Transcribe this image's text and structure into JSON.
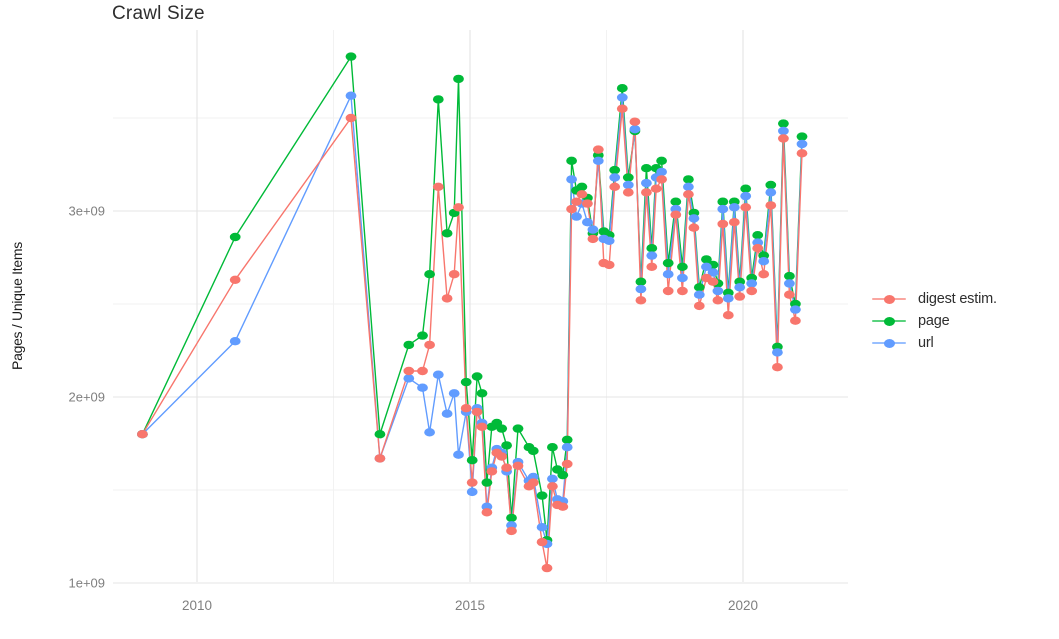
{
  "title": "Crawl Size",
  "axes": {
    "y": {
      "label": "Pages / Unique Items",
      "ticks": [
        {
          "label": "1e+09",
          "value": 1000000000.0
        },
        {
          "label": "2e+09",
          "value": 2000000000.0
        },
        {
          "label": "3e+09",
          "value": 3000000000.0
        }
      ]
    },
    "x": {
      "ticks": [
        {
          "label": "2010",
          "value": 2010
        },
        {
          "label": "2015",
          "value": 2015
        },
        {
          "label": "2020",
          "value": 2020
        }
      ]
    }
  },
  "legend": {
    "items": [
      {
        "label": "digest estim.",
        "color": "#F8766D",
        "series": "digest estim."
      },
      {
        "label": "page",
        "color": "#00BA38",
        "series": "page"
      },
      {
        "label": "url",
        "color": "#619CFF",
        "series": "url"
      }
    ]
  },
  "chart_data": {
    "type": "line",
    "title": "Crawl Size",
    "ylabel": "Pages / Unique Items",
    "xlabel": "",
    "grid": "on",
    "background": "white",
    "legend_position": "right",
    "xlim": [
      2008.45,
      2021.95
    ],
    "ylim": [
      1000000000.0,
      3980000000.0
    ],
    "x_major_gridlines": [
      2010,
      2015,
      2020
    ],
    "x_minor_gridlines": [
      2012.5,
      2017.5
    ],
    "y_major_gridlines": [
      1000000000.0,
      2000000000.0,
      3000000000.0
    ],
    "y_minor_gridlines": [
      1500000000.0,
      2500000000.0,
      3500000000.0
    ],
    "x": [
      2009.0,
      2010.7,
      2012.82,
      2013.35,
      2013.88,
      2014.13,
      2014.26,
      2014.42,
      2014.58,
      2014.71,
      2014.79,
      2014.93,
      2015.04,
      2015.13,
      2015.22,
      2015.31,
      2015.4,
      2015.49,
      2015.58,
      2015.67,
      2015.76,
      2015.88,
      2016.08,
      2016.16,
      2016.32,
      2016.41,
      2016.51,
      2016.6,
      2016.7,
      2016.78,
      2016.86,
      2016.95,
      2017.05,
      2017.15,
      2017.25,
      2017.35,
      2017.45,
      2017.55,
      2017.65,
      2017.79,
      2017.9,
      2018.02,
      2018.13,
      2018.23,
      2018.33,
      2018.41,
      2018.51,
      2018.63,
      2018.77,
      2018.89,
      2019.0,
      2019.1,
      2019.2,
      2019.33,
      2019.45,
      2019.54,
      2019.63,
      2019.73,
      2019.84,
      2019.94,
      2020.05,
      2020.16,
      2020.27,
      2020.38,
      2020.51,
      2020.63,
      2020.74,
      2020.85,
      2020.96,
      2021.08
    ],
    "series": [
      {
        "name": "page",
        "color": "#00BA38",
        "values": [
          1800000000.0,
          2860000000.0,
          3830000000.0,
          1800000000.0,
          2280000000.0,
          2330000000.0,
          2660000000.0,
          3600000000.0,
          2880000000.0,
          2990000000.0,
          3710000000.0,
          2080000000.0,
          1660000000.0,
          2110000000.0,
          2020000000.0,
          1540000000.0,
          1840000000.0,
          1860000000.0,
          1830000000.0,
          1740000000.0,
          1350000000.0,
          1830000000.0,
          1730000000.0,
          1710000000.0,
          1470000000.0,
          1230000000.0,
          1730000000.0,
          1610000000.0,
          1580000000.0,
          1770000000.0,
          3270000000.0,
          3110000000.0,
          3130000000.0,
          3070000000.0,
          2880000000.0,
          3300000000.0,
          2890000000.0,
          2870000000.0,
          3220000000.0,
          3660000000.0,
          3180000000.0,
          3430000000.0,
          2620000000.0,
          3230000000.0,
          2800000000.0,
          3230000000.0,
          3270000000.0,
          2720000000.0,
          3050000000.0,
          2700000000.0,
          3170000000.0,
          2990000000.0,
          2590000000.0,
          2740000000.0,
          2710000000.0,
          2610000000.0,
          3050000000.0,
          2560000000.0,
          3050000000.0,
          2620000000.0,
          3120000000.0,
          2640000000.0,
          2870000000.0,
          2760000000.0,
          3140000000.0,
          2270000000.0,
          3470000000.0,
          2650000000.0,
          2500000000.0,
          3400000000.0
        ]
      },
      {
        "name": "url",
        "color": "#619CFF",
        "values": [
          1800000000.0,
          2300000000.0,
          3620000000.0,
          1670000000.0,
          2100000000.0,
          2050000000.0,
          1810000000.0,
          2120000000.0,
          1910000000.0,
          2020000000.0,
          1690000000.0,
          1920000000.0,
          1490000000.0,
          1940000000.0,
          1860000000.0,
          1410000000.0,
          1620000000.0,
          1720000000.0,
          1700000000.0,
          1600000000.0,
          1310000000.0,
          1650000000.0,
          1550000000.0,
          1570000000.0,
          1300000000.0,
          1210000000.0,
          1560000000.0,
          1450000000.0,
          1440000000.0,
          1730000000.0,
          3170000000.0,
          2970000000.0,
          3040000000.0,
          2940000000.0,
          2900000000.0,
          3270000000.0,
          2850000000.0,
          2840000000.0,
          3180000000.0,
          3610000000.0,
          3140000000.0,
          3440000000.0,
          2580000000.0,
          3150000000.0,
          2760000000.0,
          3180000000.0,
          3210000000.0,
          2660000000.0,
          3010000000.0,
          2640000000.0,
          3130000000.0,
          2960000000.0,
          2550000000.0,
          2700000000.0,
          2670000000.0,
          2570000000.0,
          3010000000.0,
          2530000000.0,
          3020000000.0,
          2590000000.0,
          3080000000.0,
          2610000000.0,
          2830000000.0,
          2730000000.0,
          3100000000.0,
          2240000000.0,
          3430000000.0,
          2610000000.0,
          2470000000.0,
          3360000000.0
        ]
      },
      {
        "name": "digest estim.",
        "color": "#F8766D",
        "values": [
          1800000000.0,
          2630000000.0,
          3500000000.0,
          1670000000.0,
          2140000000.0,
          2140000000.0,
          2280000000.0,
          3130000000.0,
          2530000000.0,
          2660000000.0,
          3020000000.0,
          1940000000.0,
          1540000000.0,
          1920000000.0,
          1840000000.0,
          1380000000.0,
          1600000000.0,
          1700000000.0,
          1680000000.0,
          1620000000.0,
          1280000000.0,
          1630000000.0,
          1520000000.0,
          1540000000.0,
          1220000000.0,
          1080000000.0,
          1520000000.0,
          1420000000.0,
          1410000000.0,
          1640000000.0,
          3010000000.0,
          3050000000.0,
          3090000000.0,
          3040000000.0,
          2850000000.0,
          3330000000.0,
          2720000000.0,
          2710000000.0,
          3130000000.0,
          3550000000.0,
          3100000000.0,
          3480000000.0,
          2520000000.0,
          3100000000.0,
          2700000000.0,
          3120000000.0,
          3170000000.0,
          2570000000.0,
          2980000000.0,
          2570000000.0,
          3090000000.0,
          2910000000.0,
          2490000000.0,
          2640000000.0,
          2620000000.0,
          2520000000.0,
          2930000000.0,
          2440000000.0,
          2940000000.0,
          2540000000.0,
          3020000000.0,
          2570000000.0,
          2800000000.0,
          2660000000.0,
          3030000000.0,
          2160000000.0,
          3390000000.0,
          2550000000.0,
          2410000000.0,
          3310000000.0
        ]
      }
    ]
  },
  "colors": {
    "grid_major": "#e4e4e4",
    "grid_minor": "#f1f1f1",
    "tick_label": "#7f7f7f",
    "title": "#2e2e2e",
    "axis_title": "#1c1c1c",
    "legend_text": "#2e2e2e"
  }
}
